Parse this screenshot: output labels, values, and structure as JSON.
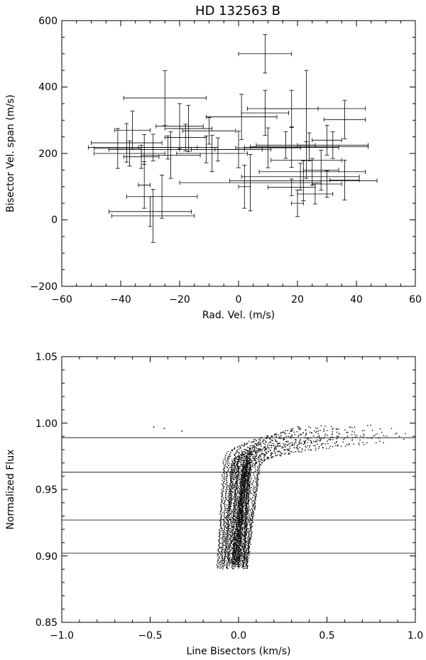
{
  "chart_data": [
    {
      "type": "scatter",
      "title": "HD 132563 B",
      "xlabel": "Rad. Vel. (m/s)",
      "ylabel": "Bisector Vel. span (m/s)",
      "xlim": [
        -60,
        60
      ],
      "ylim": [
        -200,
        600
      ],
      "xticks": [
        "−60",
        "−40",
        "−20",
        "0",
        "20",
        "40",
        "60"
      ],
      "yticks": [
        "−200",
        "0",
        "200",
        "400",
        "600"
      ],
      "grid": false,
      "error_bars": true,
      "points": [
        {
          "x": 9,
          "y": 500,
          "xerr": 9,
          "yerr": 58
        },
        {
          "x": -25,
          "y": 367,
          "xerr": 14,
          "yerr": 82
        },
        {
          "x": 23,
          "y": 335,
          "xerr": 20,
          "yerr": 115
        },
        {
          "x": 36,
          "y": 302,
          "xerr": 7,
          "yerr": 58
        },
        {
          "x": 18,
          "y": 335,
          "xerr": 9,
          "yerr": 55
        },
        {
          "x": 9,
          "y": 322,
          "xerr": 8,
          "yerr": 68
        },
        {
          "x": 1,
          "y": 310,
          "xerr": 12,
          "yerr": 68
        },
        {
          "x": -17,
          "y": 275,
          "xerr": 8,
          "yerr": 70
        },
        {
          "x": -20,
          "y": 282,
          "xerr": 8,
          "yerr": 68
        },
        {
          "x": -10,
          "y": 268,
          "xerr": 9,
          "yerr": 40
        },
        {
          "x": -36,
          "y": 270,
          "xerr": 6,
          "yerr": 58
        },
        {
          "x": -18,
          "y": 248,
          "xerr": 7,
          "yerr": 40
        },
        {
          "x": 30,
          "y": 240,
          "xerr": 5,
          "yerr": 45
        },
        {
          "x": 16,
          "y": 225,
          "xerr": 10,
          "yerr": 40
        },
        {
          "x": 32,
          "y": 225,
          "xerr": 12,
          "yerr": 40
        },
        {
          "x": 24,
          "y": 220,
          "xerr": 20,
          "yerr": 42
        },
        {
          "x": 18,
          "y": 218,
          "xerr": 16,
          "yerr": 60
        },
        {
          "x": 10,
          "y": 217,
          "xerr": 11,
          "yerr": 60
        },
        {
          "x": -38,
          "y": 232,
          "xerr": 12,
          "yerr": 58
        },
        {
          "x": -41,
          "y": 215,
          "xerr": 8,
          "yerr": 60
        },
        {
          "x": -32,
          "y": 212,
          "xerr": 12,
          "yerr": 45
        },
        {
          "x": -29,
          "y": 218,
          "xerr": 22,
          "yerr": 40
        },
        {
          "x": -24,
          "y": 218,
          "xerr": 10,
          "yerr": 35
        },
        {
          "x": -11,
          "y": 212,
          "xerr": 22,
          "yerr": 40
        },
        {
          "x": -7,
          "y": 212,
          "xerr": 9,
          "yerr": 35
        },
        {
          "x": 0,
          "y": 212,
          "xerr": 8,
          "yerr": 55
        },
        {
          "x": -9,
          "y": 200,
          "xerr": 12,
          "yerr": 55
        },
        {
          "x": -23,
          "y": 195,
          "xerr": 10,
          "yerr": 70
        },
        {
          "x": -37,
          "y": 200,
          "xerr": 12,
          "yerr": 38
        },
        {
          "x": -33,
          "y": 190,
          "xerr": 6,
          "yerr": 35
        },
        {
          "x": 23,
          "y": 180,
          "xerr": 12,
          "yerr": 55
        },
        {
          "x": 28,
          "y": 150,
          "xerr": 6,
          "yerr": 60
        },
        {
          "x": 25,
          "y": 145,
          "xerr": 18,
          "yerr": 40
        },
        {
          "x": 21,
          "y": 130,
          "xerr": 20,
          "yerr": 40
        },
        {
          "x": 22,
          "y": 118,
          "xerr": 25,
          "yerr": 60
        },
        {
          "x": 4,
          "y": 112,
          "xerr": 24,
          "yerr": 85
        },
        {
          "x": 18,
          "y": 98,
          "xerr": 8,
          "yerr": 25
        },
        {
          "x": 30,
          "y": 108,
          "xerr": 5,
          "yerr": 40
        },
        {
          "x": 36,
          "y": 120,
          "xerr": 5,
          "yerr": 60
        },
        {
          "x": 26,
          "y": 78,
          "xerr": 6,
          "yerr": 30
        },
        {
          "x": 20,
          "y": 50,
          "xerr": 2,
          "yerr": 40
        },
        {
          "x": 2,
          "y": 100,
          "xerr": 2,
          "yerr": 65
        },
        {
          "x": -32,
          "y": 105,
          "xerr": 2,
          "yerr": 70
        },
        {
          "x": -26,
          "y": 70,
          "xerr": 12,
          "yerr": 65
        },
        {
          "x": -30,
          "y": 25,
          "xerr": 14,
          "yerr": 45
        },
        {
          "x": -29,
          "y": 12,
          "xerr": 14,
          "yerr": 80
        }
      ]
    },
    {
      "type": "scatter",
      "title": "",
      "xlabel": "Line Bisectors (km/s)",
      "ylabel": "Normalized Flux",
      "xlim": [
        -1.0,
        1.0
      ],
      "ylim": [
        0.85,
        1.05
      ],
      "xticks": [
        "−1.0",
        "−0.5",
        "0.0",
        "0.5",
        "1.0"
      ],
      "yticks": [
        "0.85",
        "0.90",
        "0.95",
        "1.00",
        "1.05"
      ],
      "grid": false,
      "hlines": [
        0.989,
        0.963,
        0.927,
        0.902
      ],
      "curves": {
        "count": 48,
        "flux_range": [
          0.89,
          0.999
        ],
        "base_velocity_range": [
          -0.12,
          0.05
        ],
        "top_velocity_range": [
          0.35,
          1.0
        ],
        "outliers": [
          {
            "x": -0.48,
            "y": 0.997
          },
          {
            "x": -0.42,
            "y": 0.996
          },
          {
            "x": -0.32,
            "y": 0.994
          }
        ]
      }
    }
  ]
}
